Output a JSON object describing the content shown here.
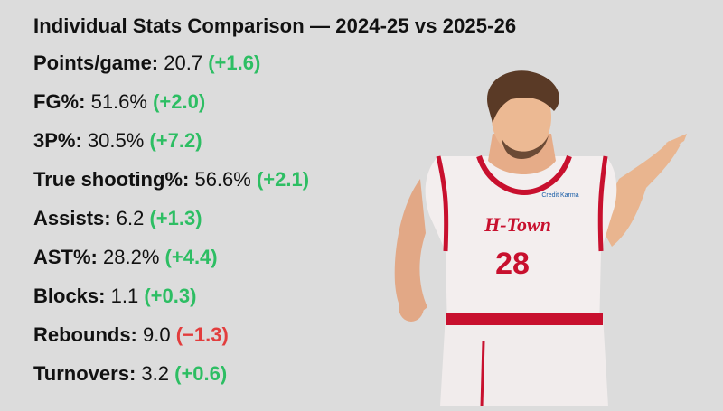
{
  "title": "Individual Stats Comparison — 2024-25 vs 2025-26",
  "stats": [
    {
      "label": "Points/game:",
      "value": "20.7",
      "change": "(+1.6)",
      "trend": "up"
    },
    {
      "label": "FG%:",
      "value": "51.6%",
      "change": "(+2.0)",
      "trend": "up"
    },
    {
      "label": "3P%:",
      "value": "30.5%",
      "change": "(+7.2)",
      "trend": "up"
    },
    {
      "label": "True shooting%:",
      "value": "56.6%",
      "change": "(+2.1)",
      "trend": "up"
    },
    {
      "label": "Assists:",
      "value": "6.2",
      "change": "(+1.3)",
      "trend": "up"
    },
    {
      "label": "AST%:",
      "value": "28.2%",
      "change": "(+4.4)",
      "trend": "up"
    },
    {
      "label": "Blocks:",
      "value": "1.1",
      "change": "(+0.3)",
      "trend": "up"
    },
    {
      "label": "Rebounds:",
      "value": "9.0",
      "change": "(−1.3)",
      "trend": "down"
    },
    {
      "label": "Turnovers:",
      "value": "3.2",
      "change": "(+0.6)",
      "trend": "up"
    }
  ],
  "player": {
    "jersey_team": "H-Town",
    "jersey_number": "28",
    "patch": "Credit Karma"
  },
  "colors": {
    "background": "#dcdcdc",
    "positive": "#2dbe63",
    "negative": "#e23d3d",
    "jersey_trim": "#c8102e"
  }
}
